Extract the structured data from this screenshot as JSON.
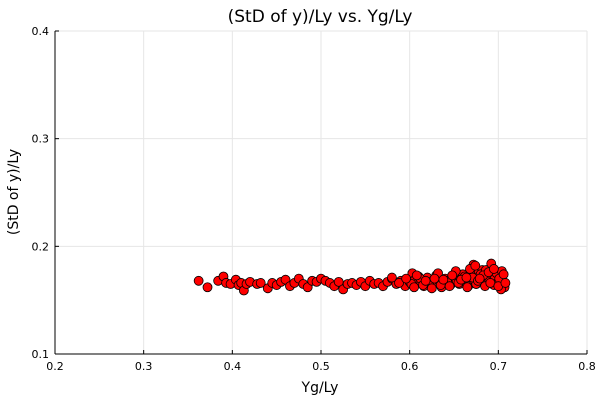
{
  "chart_data": {
    "type": "scatter",
    "title": "(StD of y)/Ly vs. Yg/Ly",
    "xlabel": "Yg/Ly",
    "ylabel": "(StD of y)/Ly",
    "xlim": [
      0.2,
      0.8
    ],
    "ylim": [
      0.1,
      0.4
    ],
    "xticks": [
      "0.2",
      "0.3",
      "0.4",
      "0.5",
      "0.6",
      "0.7",
      "0.8"
    ],
    "yticks": [
      "0.1",
      "0.2",
      "0.3",
      "0.4"
    ],
    "grid": true,
    "legend": "none",
    "marker_color": "#ff0000",
    "marker_edge_color": "#000000",
    "series": [
      {
        "x": [
          0.362,
          0.372,
          0.384,
          0.39,
          0.393,
          0.398,
          0.404,
          0.407,
          0.41,
          0.413,
          0.416,
          0.42,
          0.428,
          0.432,
          0.44,
          0.445,
          0.45,
          0.455,
          0.46,
          0.465,
          0.47,
          0.475,
          0.48,
          0.485,
          0.49,
          0.495,
          0.5,
          0.505,
          0.51,
          0.515,
          0.52,
          0.525,
          0.53,
          0.535,
          0.54,
          0.545,
          0.55,
          0.555,
          0.56,
          0.565,
          0.57,
          0.575,
          0.58,
          0.585,
          0.59,
          0.595,
          0.6,
          0.603,
          0.606,
          0.61,
          0.613,
          0.616,
          0.62,
          0.623,
          0.626,
          0.63,
          0.633,
          0.636,
          0.64,
          0.643,
          0.646,
          0.65,
          0.653,
          0.656,
          0.66,
          0.663,
          0.666,
          0.669,
          0.672,
          0.675,
          0.678,
          0.681,
          0.684,
          0.687,
          0.69,
          0.693,
          0.696,
          0.699,
          0.702,
          0.705,
          0.707,
          0.602,
          0.612,
          0.622,
          0.632,
          0.642,
          0.652,
          0.662,
          0.672,
          0.682,
          0.692,
          0.7,
          0.605,
          0.615,
          0.625,
          0.635,
          0.645,
          0.655,
          0.665,
          0.675,
          0.685,
          0.695,
          0.703,
          0.668,
          0.674,
          0.68,
          0.686,
          0.692,
          0.698,
          0.704,
          0.671,
          0.677,
          0.683,
          0.689,
          0.695,
          0.701,
          0.706,
          0.58,
          0.588,
          0.596,
          0.608,
          0.618,
          0.628,
          0.638,
          0.648,
          0.658,
          0.664,
          0.679,
          0.691,
          0.7,
          0.708
        ],
        "y": [
          0.168,
          0.162,
          0.168,
          0.172,
          0.166,
          0.165,
          0.169,
          0.164,
          0.166,
          0.159,
          0.165,
          0.167,
          0.165,
          0.166,
          0.161,
          0.166,
          0.164,
          0.167,
          0.169,
          0.163,
          0.166,
          0.17,
          0.165,
          0.162,
          0.168,
          0.167,
          0.17,
          0.168,
          0.166,
          0.163,
          0.167,
          0.16,
          0.165,
          0.166,
          0.164,
          0.167,
          0.163,
          0.168,
          0.165,
          0.166,
          0.163,
          0.167,
          0.17,
          0.165,
          0.168,
          0.163,
          0.167,
          0.175,
          0.169,
          0.172,
          0.166,
          0.163,
          0.171,
          0.167,
          0.164,
          0.173,
          0.168,
          0.162,
          0.17,
          0.166,
          0.164,
          0.172,
          0.168,
          0.165,
          0.174,
          0.167,
          0.163,
          0.176,
          0.169,
          0.165,
          0.177,
          0.17,
          0.166,
          0.172,
          0.168,
          0.174,
          0.17,
          0.166,
          0.172,
          0.168,
          0.162,
          0.165,
          0.17,
          0.166,
          0.175,
          0.168,
          0.177,
          0.172,
          0.183,
          0.178,
          0.181,
          0.176,
          0.162,
          0.164,
          0.161,
          0.164,
          0.163,
          0.166,
          0.162,
          0.165,
          0.163,
          0.164,
          0.16,
          0.179,
          0.182,
          0.174,
          0.178,
          0.184,
          0.175,
          0.177,
          0.171,
          0.168,
          0.173,
          0.176,
          0.179,
          0.17,
          0.174,
          0.171,
          0.166,
          0.17,
          0.173,
          0.168,
          0.17,
          0.169,
          0.173,
          0.169,
          0.171,
          0.17,
          0.166,
          0.163,
          0.166
        ]
      }
    ]
  }
}
